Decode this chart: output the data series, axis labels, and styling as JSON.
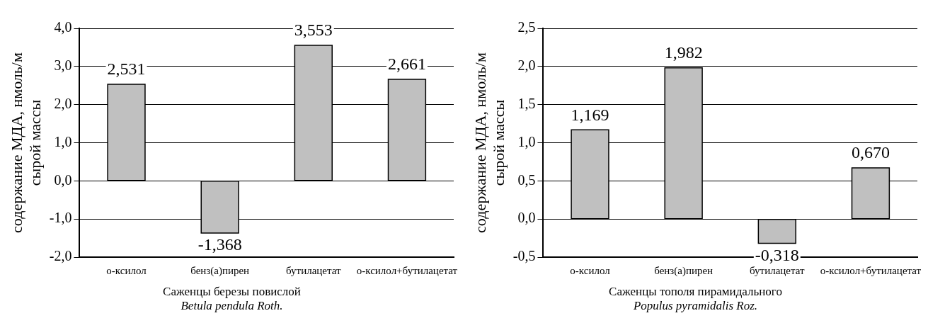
{
  "chart_data": [
    {
      "type": "bar",
      "xlabel": "Саженцы березы повислой\nBetula pendula Roth.",
      "ylabel": "содержание МДА, нмоль/м\nсырой массы",
      "categories": [
        "о-ксилол",
        "бенз(а)пирен",
        "бутилацетат",
        "о-ксилол+бутилацетат"
      ],
      "values": [
        2.531,
        -1.368,
        3.553,
        2.661
      ],
      "value_labels": [
        "2,531",
        "-1,368",
        "3,553",
        "2,661"
      ],
      "color": "#c0c0c0",
      "ylim": [
        -2,
        4
      ],
      "yticks": [
        {
          "value": -2,
          "label": "-2,0"
        },
        {
          "value": -1,
          "label": "-1,0"
        },
        {
          "value": 0,
          "label": "0,0"
        },
        {
          "value": 1,
          "label": "1,0"
        },
        {
          "value": 2,
          "label": "2,0"
        },
        {
          "value": 3,
          "label": "3,0"
        },
        {
          "value": 4,
          "label": "4,0"
        }
      ],
      "grid": "y"
    },
    {
      "type": "bar",
      "xlabel": "Саженцы тополя пирамидального\nPopulus pyramidalis Roz.",
      "ylabel": "содержание МДА, нмоль/м\nсырой массы",
      "categories": [
        "о-ксилол",
        "бенз(а)пирен",
        "бутилацетат",
        "о-ксилол+бутилацетат"
      ],
      "values": [
        1.169,
        1.982,
        -0.318,
        0.67
      ],
      "value_labels": [
        "1,169",
        "1,982",
        "-0,318",
        "0,670"
      ],
      "color": "#c0c0c0",
      "ylim": [
        -0.5,
        2.5
      ],
      "yticks": [
        {
          "value": -0.5,
          "label": "-0,5"
        },
        {
          "value": 0,
          "label": "0,0"
        },
        {
          "value": 0.5,
          "label": "0,5"
        },
        {
          "value": 1,
          "label": "1,0"
        },
        {
          "value": 1.5,
          "label": "1,5"
        },
        {
          "value": 2,
          "label": "2,0"
        },
        {
          "value": 2.5,
          "label": "2,5"
        }
      ],
      "grid": "y"
    }
  ]
}
